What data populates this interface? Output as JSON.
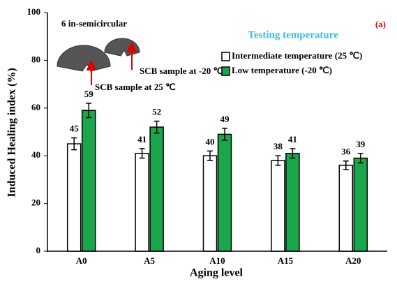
{
  "chart_data": {
    "type": "bar",
    "categories": [
      "A0",
      "A5",
      "A10",
      "A15",
      "A20"
    ],
    "series": [
      {
        "name": "Intermediate temperature (25 ℃)",
        "color": "#ffffff",
        "values": [
          45,
          41,
          40,
          38,
          36
        ],
        "errors": [
          2.5,
          2,
          2,
          2,
          1.8
        ]
      },
      {
        "name": "Low temperature (-20 ℃)",
        "color": "#1aa64a",
        "values": [
          59,
          52,
          49,
          41,
          39
        ],
        "errors": [
          3,
          2.5,
          2.5,
          2,
          2
        ]
      }
    ],
    "edgecolor": "#000000",
    "legend_title": "Testing temperature",
    "xlabel": "Aging level",
    "ylabel": "Induced Healing index (%)",
    "ylim": [
      0,
      100
    ],
    "yticks": [
      0,
      20,
      40,
      60,
      80,
      100
    ],
    "annotations": [
      "6 in-semicircular",
      "SCB sample at -20 ℃",
      "SCB sample at 25 ℃",
      "(a)"
    ]
  }
}
